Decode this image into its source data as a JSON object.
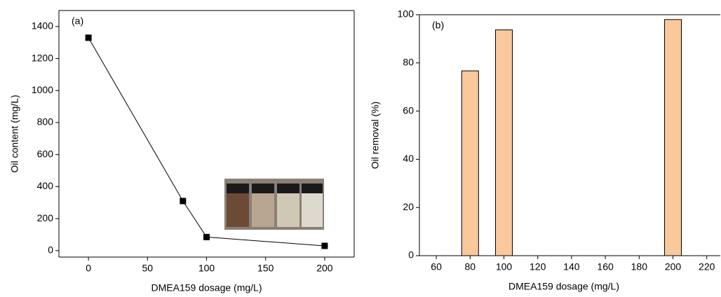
{
  "chart_data": [
    {
      "type": "line",
      "annotation": "(a)",
      "xlabel": "DMEA159 dosage (mg/L)",
      "ylabel": "Oil content (mg/L)",
      "x": [
        0,
        80,
        100,
        200
      ],
      "values": [
        1330,
        310,
        85,
        30
      ],
      "color": "#000000",
      "xlim": [
        -25,
        225
      ],
      "xticks": [
        0,
        50,
        100,
        150,
        200
      ],
      "ylim": [
        -40,
        1500
      ],
      "yticks": [
        0,
        200,
        400,
        600,
        800,
        1000,
        1200,
        1400
      ]
    },
    {
      "type": "bar",
      "annotation": "(b)",
      "xlabel": "DMEA159 dosage (mg/L)",
      "ylabel": "Oil removal (%)",
      "x": [
        80,
        100,
        200
      ],
      "values": [
        76.7,
        93.7,
        98
      ],
      "color": "#f9c89b",
      "xlim": [
        50,
        228
      ],
      "xticks": [
        60,
        80,
        100,
        120,
        140,
        160,
        180,
        200,
        220
      ],
      "ylim": [
        0,
        100
      ],
      "yticks": [
        0,
        20,
        40,
        60,
        80,
        100
      ]
    }
  ]
}
